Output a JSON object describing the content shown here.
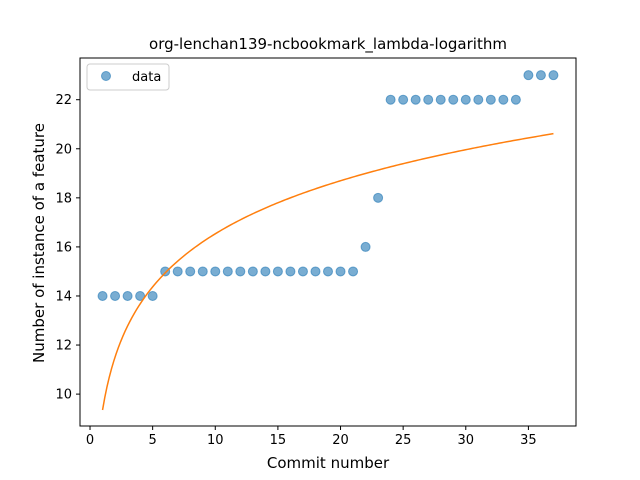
{
  "chart_data": {
    "type": "scatter",
    "title": "org-lenchan139-ncbookmark_lambda-logarithm",
    "xlabel": "Commit number",
    "ylabel": "Number of instance of a feature",
    "xlim": [
      -0.8,
      38.8
    ],
    "ylim": [
      8.7,
      23.7
    ],
    "xticks": [
      0,
      5,
      10,
      15,
      20,
      25,
      30,
      35
    ],
    "yticks": [
      10,
      12,
      14,
      16,
      18,
      20,
      22
    ],
    "grid": false,
    "legend": {
      "placement": "top-left",
      "entries": [
        "data"
      ]
    },
    "series": [
      {
        "name": "data",
        "kind": "scatter",
        "color": "#1f77b4",
        "x": [
          1,
          2,
          3,
          4,
          5,
          6,
          7,
          8,
          9,
          10,
          11,
          12,
          13,
          14,
          15,
          16,
          17,
          18,
          19,
          20,
          21,
          22,
          23,
          24,
          25,
          26,
          27,
          28,
          29,
          30,
          31,
          32,
          33,
          34,
          35,
          36,
          37
        ],
        "y": [
          14,
          14,
          14,
          14,
          14,
          15,
          15,
          15,
          15,
          15,
          15,
          15,
          15,
          15,
          15,
          15,
          15,
          15,
          15,
          15,
          15,
          16,
          18,
          22,
          22,
          22,
          22,
          22,
          22,
          22,
          22,
          22,
          22,
          22,
          23,
          23,
          23
        ]
      },
      {
        "kind": "line",
        "color": "#ff7f0e",
        "fit": {
          "form": "a + b*ln(x)",
          "a": 9.35,
          "b": 3.12
        },
        "x_range": [
          1,
          37
        ]
      }
    ]
  }
}
